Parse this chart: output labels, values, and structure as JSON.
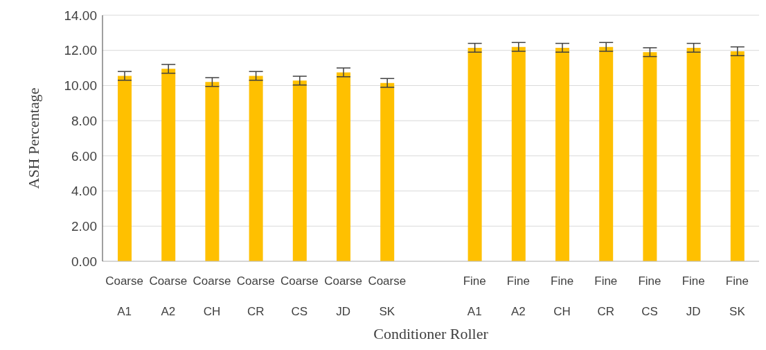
{
  "chart_data": {
    "type": "bar",
    "xlabel": "Conditioner Roller",
    "ylabel": "ASH Percentage",
    "categories": [
      "Coarse A1",
      "Coarse A2",
      "Coarse CH",
      "Coarse CR",
      "Coarse CS",
      "Coarse JD",
      "Coarse SK",
      null,
      "Fine A1",
      "Fine A2",
      "Fine CH",
      "Fine CR",
      "Fine CS",
      "Fine JD",
      "Fine SK"
    ],
    "values": [
      10.55,
      10.95,
      10.2,
      10.55,
      10.28,
      10.75,
      10.15,
      null,
      12.15,
      12.2,
      12.15,
      12.2,
      11.9,
      12.15,
      11.95
    ],
    "errors": [
      0.25,
      0.25,
      0.25,
      0.25,
      0.25,
      0.25,
      0.25,
      null,
      0.25,
      0.25,
      0.25,
      0.25,
      0.25,
      0.25,
      0.25
    ],
    "color": "#ffc000",
    "ylim": [
      0,
      14
    ],
    "yticks": [
      {
        "value": 0,
        "label": "0.00"
      },
      {
        "value": 2,
        "label": "2.00"
      },
      {
        "value": 4,
        "label": "4.00"
      },
      {
        "value": 6,
        "label": "6.00"
      },
      {
        "value": 8,
        "label": "8.00"
      },
      {
        "value": 10,
        "label": "10.00"
      },
      {
        "value": 12,
        "label": "12.00"
      },
      {
        "value": 14,
        "label": "14.00"
      }
    ],
    "grid": "y"
  }
}
